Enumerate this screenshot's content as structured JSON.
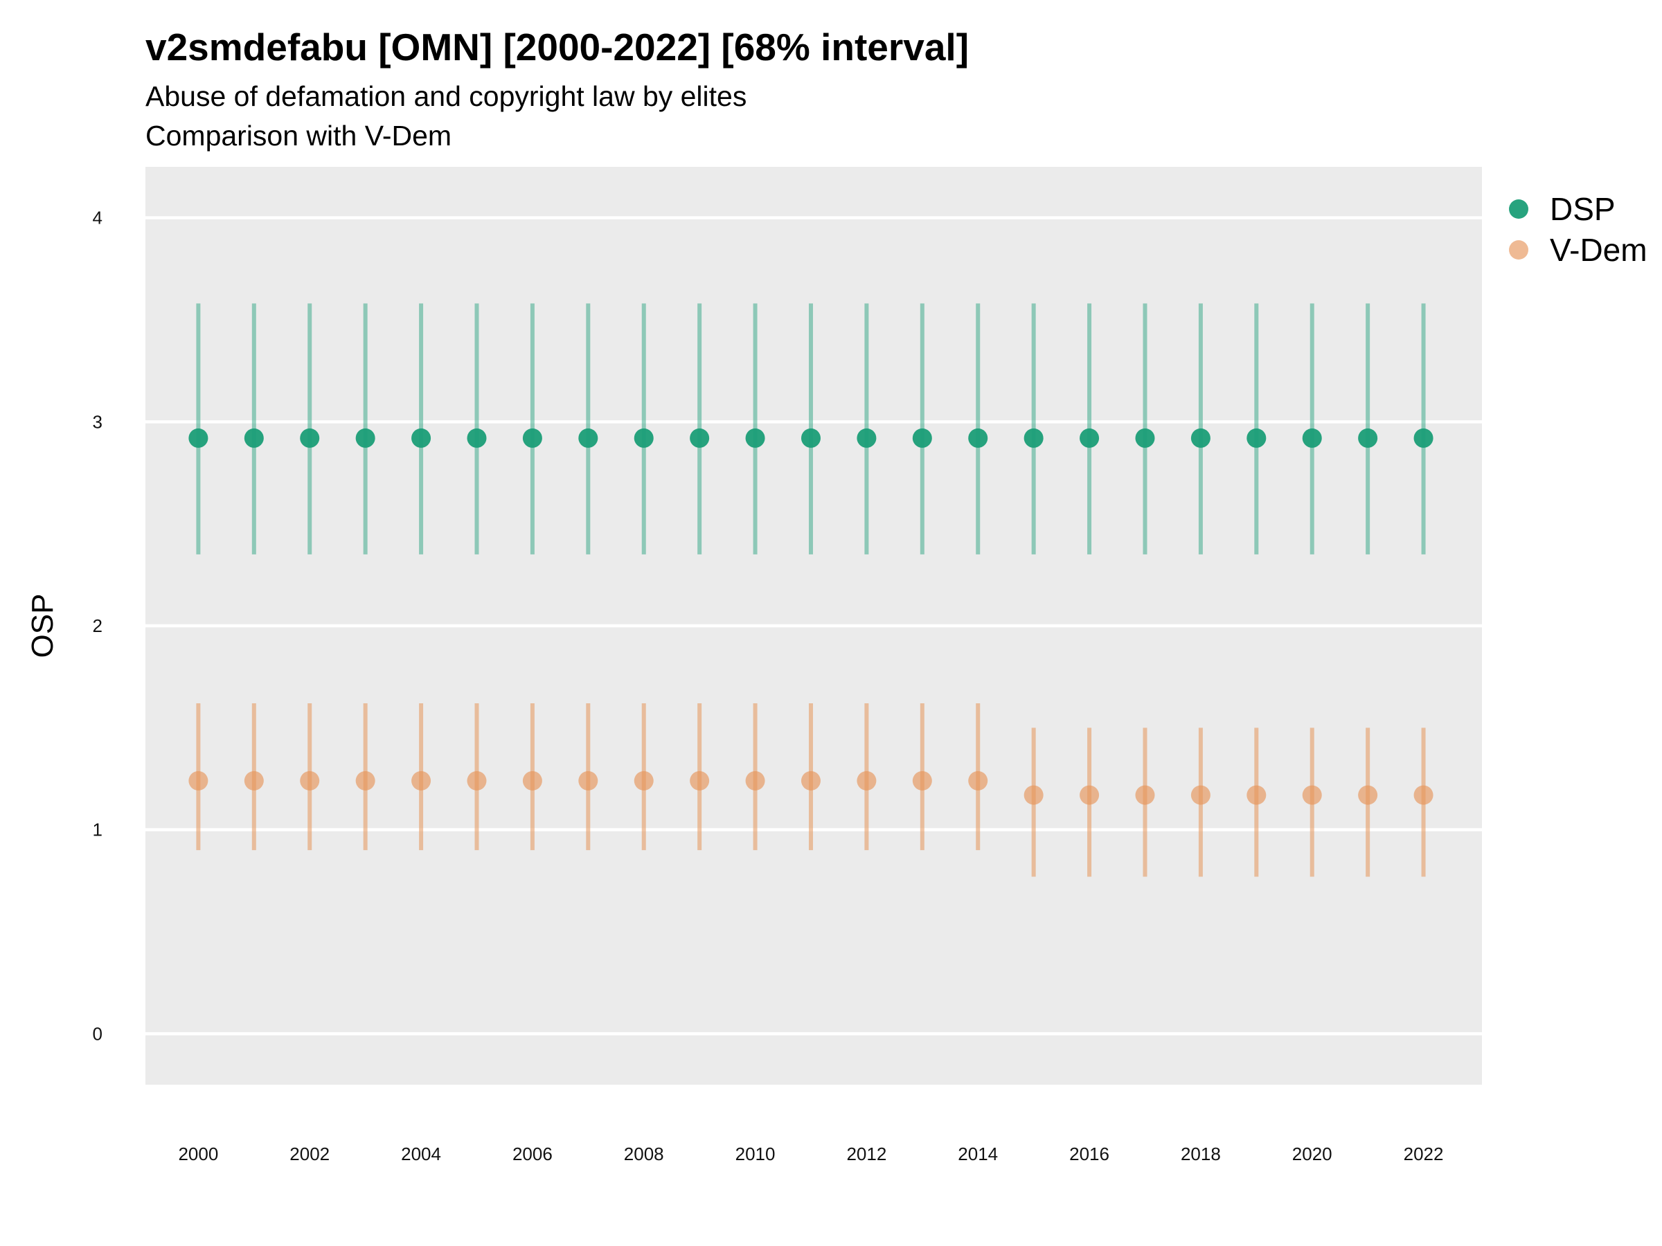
{
  "title": "v2smdefabu [OMN] [2000-2022] [68% interval]",
  "subtitle_line1": "Abuse of defamation and copyright law by elites",
  "subtitle_line2": "Comparison with V-Dem",
  "colors": {
    "DSP": "#1b9e77",
    "V-Dem": "#e6955a",
    "panel": "#ebebeb",
    "grid": "#ffffff"
  },
  "chart_data": {
    "type": "scatter",
    "subtype": "point-range (68% interval)",
    "title": "v2smdefabu [OMN] [2000-2022] [68% interval]",
    "subtitle": "Abuse of defamation and copyright law by elites / Comparison with V-Dem",
    "xlabel": "",
    "ylabel": "OSP",
    "x": [
      2000,
      2001,
      2002,
      2003,
      2004,
      2005,
      2006,
      2007,
      2008,
      2009,
      2010,
      2011,
      2012,
      2013,
      2014,
      2015,
      2016,
      2017,
      2018,
      2019,
      2020,
      2021,
      2022
    ],
    "x_tick_labels": [
      "2000",
      "2002",
      "2004",
      "2006",
      "2008",
      "2010",
      "2012",
      "2014",
      "2016",
      "2018",
      "2020",
      "2022"
    ],
    "y_ticks": [
      0,
      1,
      2,
      3,
      4
    ],
    "xlim": [
      1999.05,
      2023.05
    ],
    "ylim": [
      -0.25,
      4.25
    ],
    "grid": true,
    "legend_position": "right",
    "series": [
      {
        "name": "DSP",
        "color": "#1b9e77",
        "values": [
          2.92,
          2.92,
          2.92,
          2.92,
          2.92,
          2.92,
          2.92,
          2.92,
          2.92,
          2.92,
          2.92,
          2.92,
          2.92,
          2.92,
          2.92,
          2.92,
          2.92,
          2.92,
          2.92,
          2.92,
          2.92,
          2.92,
          2.92
        ],
        "lower": [
          2.35,
          2.35,
          2.35,
          2.35,
          2.35,
          2.35,
          2.35,
          2.35,
          2.35,
          2.35,
          2.35,
          2.35,
          2.35,
          2.35,
          2.35,
          2.35,
          2.35,
          2.35,
          2.35,
          2.35,
          2.35,
          2.35,
          2.35
        ],
        "upper": [
          3.58,
          3.58,
          3.58,
          3.58,
          3.58,
          3.58,
          3.58,
          3.58,
          3.58,
          3.58,
          3.58,
          3.58,
          3.58,
          3.58,
          3.58,
          3.58,
          3.58,
          3.58,
          3.58,
          3.58,
          3.58,
          3.58,
          3.58
        ]
      },
      {
        "name": "V-Dem",
        "color": "#e6955a",
        "values": [
          1.24,
          1.24,
          1.24,
          1.24,
          1.24,
          1.24,
          1.24,
          1.24,
          1.24,
          1.24,
          1.24,
          1.24,
          1.24,
          1.24,
          1.24,
          1.17,
          1.17,
          1.17,
          1.17,
          1.17,
          1.17,
          1.17,
          1.17
        ],
        "lower": [
          0.9,
          0.9,
          0.9,
          0.9,
          0.9,
          0.9,
          0.9,
          0.9,
          0.9,
          0.9,
          0.9,
          0.9,
          0.9,
          0.9,
          0.9,
          0.77,
          0.77,
          0.77,
          0.77,
          0.77,
          0.77,
          0.77,
          0.77
        ],
        "upper": [
          1.62,
          1.62,
          1.62,
          1.62,
          1.62,
          1.62,
          1.62,
          1.62,
          1.62,
          1.62,
          1.62,
          1.62,
          1.62,
          1.62,
          1.62,
          1.5,
          1.5,
          1.5,
          1.5,
          1.5,
          1.5,
          1.5,
          1.5
        ]
      }
    ]
  }
}
